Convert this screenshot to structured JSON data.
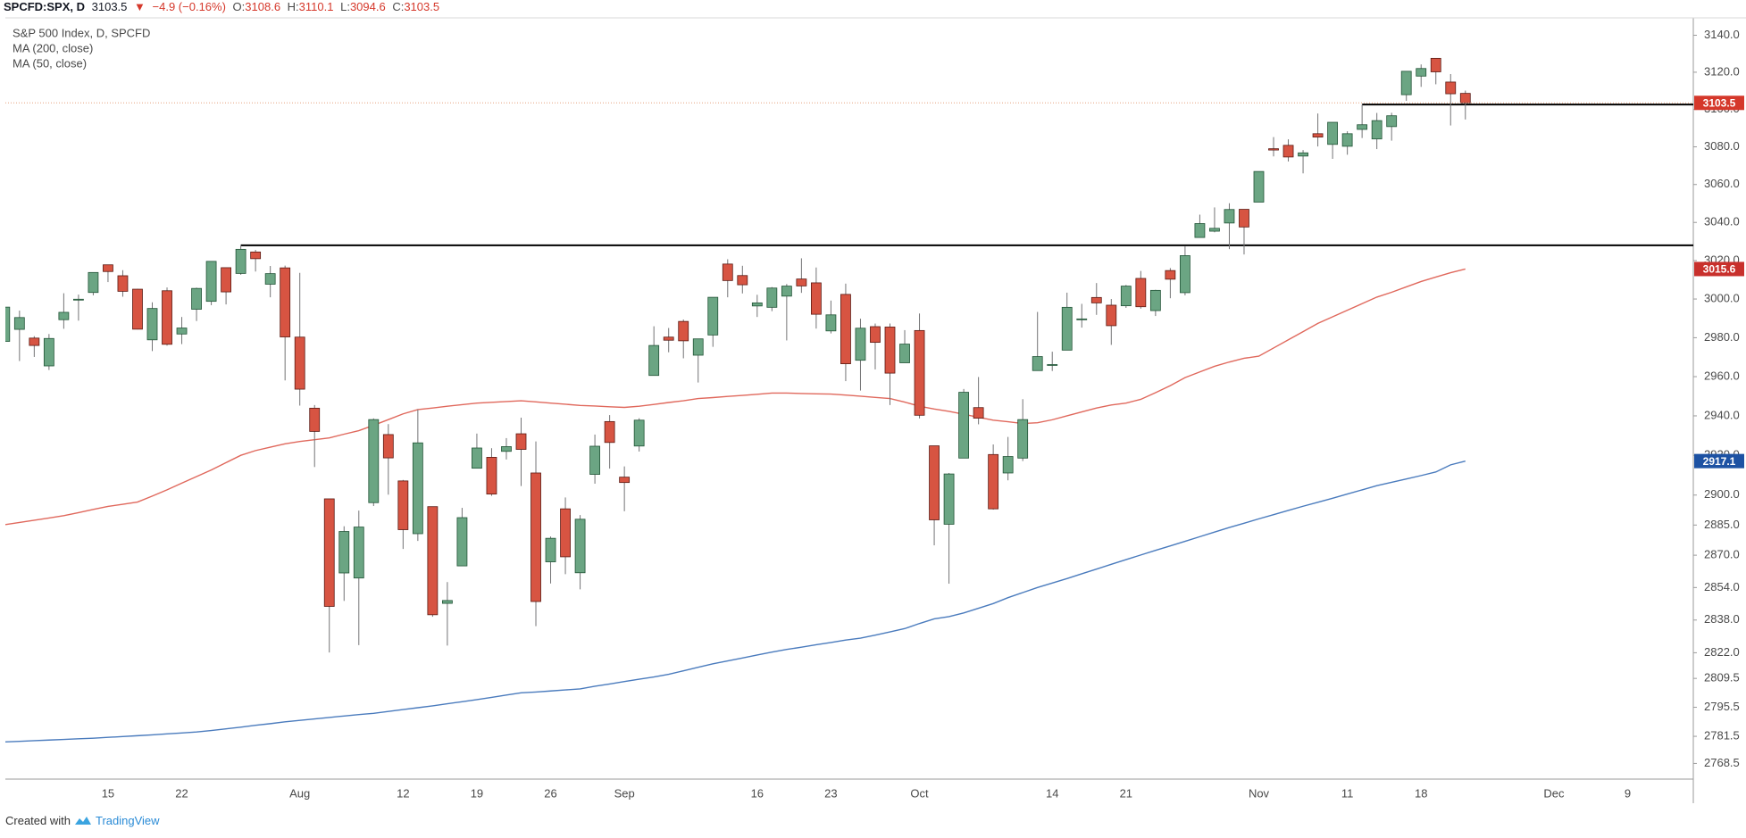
{
  "header": {
    "symbol": "SPCFD:SPX, D",
    "arrow": "▼",
    "change": "−4.9 (−0.16%)",
    "ohlc_labels": [
      "O:",
      "H:",
      "L:",
      "C:"
    ]
  },
  "footer": {
    "text": "Created with",
    "brand": "TradingView"
  },
  "chart_data": {
    "type": "candlestick",
    "name": "S&P 500 Index, D, SPCFD",
    "log_scale": true,
    "grid": false,
    "up_color": "#6ba583",
    "up_border": "#225437",
    "down_color": "#d75442",
    "down_border": "#5b1a13",
    "wick_color": "#737375",
    "last_price_color": "#e6a07c",
    "last_tag_color": "#d5382b",
    "ylim": [
      2761,
      3148.5
    ],
    "yticks": [
      {
        "value": 3140,
        "label": "3140.0"
      },
      {
        "value": 3120,
        "label": "3120.0"
      },
      {
        "value": 3100,
        "label": "3100.0"
      },
      {
        "value": 3080,
        "label": "3080.0"
      },
      {
        "value": 3060,
        "label": "3060.0"
      },
      {
        "value": 3040,
        "label": "3040.0"
      },
      {
        "value": 3020,
        "label": "3020.0"
      },
      {
        "value": 3000,
        "label": "3000.0"
      },
      {
        "value": 2980,
        "label": "2980.0"
      },
      {
        "value": 2960,
        "label": "2960.0"
      },
      {
        "value": 2940,
        "label": "2940.0"
      },
      {
        "value": 2920,
        "label": "2920.0"
      },
      {
        "value": 2900,
        "label": "2900.0"
      },
      {
        "value": 2885,
        "label": "2885.0"
      },
      {
        "value": 2870,
        "label": "2870.0"
      },
      {
        "value": 2854,
        "label": "2854.0"
      },
      {
        "value": 2838,
        "label": "2838.0"
      },
      {
        "value": 2822,
        "label": "2822.0"
      },
      2809.5,
      2795.5,
      2781.5,
      2768.5
    ],
    "categories": [
      null,
      null,
      null,
      null,
      null,
      null,
      null,
      "15",
      null,
      null,
      null,
      null,
      "22",
      null,
      null,
      null,
      null,
      null,
      null,
      null,
      "Aug",
      null,
      null,
      null,
      null,
      null,
      null,
      "12",
      null,
      null,
      null,
      null,
      "19",
      null,
      null,
      null,
      null,
      "26",
      null,
      null,
      null,
      null,
      "Sep",
      null,
      null,
      null,
      null,
      null,
      null,
      null,
      null,
      "16",
      null,
      null,
      null,
      null,
      "23",
      null,
      null,
      null,
      null,
      null,
      "Oct",
      null,
      null,
      null,
      null,
      null,
      null,
      null,
      null,
      "14",
      null,
      null,
      null,
      null,
      "21",
      null,
      null,
      null,
      null,
      null,
      null,
      null,
      null,
      "Nov",
      null,
      null,
      null,
      null,
      null,
      "11",
      null,
      null,
      null,
      null,
      "18",
      null,
      null,
      null,
      null,
      null,
      null,
      null,
      null,
      "Dec",
      null,
      null,
      null,
      null,
      "9",
      null,
      null,
      null,
      null
    ],
    "open": [
      2978.1,
      2984.3,
      2979.8,
      2965.5,
      2989.3,
      2999.6,
      3003.4,
      3017.8,
      3012.1,
      3005.1,
      2978.9,
      3004.3,
      2981.9,
      2994.7,
      2998.8,
      3016.3,
      3013.3,
      3024.5,
      3007.7,
      3016.2,
      2980.3,
      2943.9,
      2898.1,
      2861.2,
      2858.7,
      2896.2,
      2930.5,
      2907.1,
      2880.7,
      2894.2,
      2846.2,
      2864.7,
      2913.5,
      2919.0,
      2922.0,
      2930.9,
      2911.1,
      2866.7,
      2893.1,
      2861.3,
      2910.4,
      2937.1,
      2909.0,
      2924.7,
      2960.6,
      2980.3,
      2988.4,
      2971.0,
      2981.4,
      3018.2,
      3012.2,
      2996.4,
      2995.7,
      3001.5,
      3010.4,
      3008.4,
      2983.5,
      3002.4,
      2968.4,
      2985.7,
      2985.5,
      2967.1,
      2983.7,
      2924.8,
      2885.4,
      2918.6,
      2944.2,
      2920.4,
      2911.1,
      2918.6,
      2963.1,
      2965.8,
      2973.6,
      2989.7,
      3000.8,
      2996.8,
      2996.5,
      3010.7,
      2994.0,
      3014.8,
      3003.3,
      3032.1,
      3035.4,
      3039.7,
      3046.9,
      3050.7,
      3079.0,
      3080.8,
      3075.1,
      3087.0,
      3081.3,
      3080.3,
      3089.3,
      3084.2,
      3090.8,
      3107.9,
      3117.9,
      3127.5,
      3114.7,
      3108.6,
      null,
      null,
      null,
      null,
      null,
      null,
      null,
      null,
      null,
      null,
      null,
      null,
      null,
      null,
      null
    ],
    "high": [
      2995.8,
      2994.0,
      2980.8,
      2981.9,
      3003.0,
      3002.3,
      3013.9,
      3017.8,
      3015.0,
      3005.3,
      2998.3,
      3006.0,
      2990.7,
      3005.9,
      3019.6,
      3016.3,
      3028.0,
      3025.6,
      3017.2,
      3017.4,
      3013.6,
      2945.5,
      2898.1,
      2884.4,
      2892.2,
      2938.7,
      2935.8,
      2907.6,
      2943.3,
      2894.2,
      2856.7,
      2893.6,
      2931.0,
      2923.6,
      2928.7,
      2939.1,
      2927.0,
      2879.3,
      2898.8,
      2890.0,
      2930.5,
      2940.4,
      2914.4,
      2938.8,
      2985.9,
      2985.0,
      2989.4,
      2979.4,
      3000.9,
      3020.7,
      3017.3,
      3002.2,
      3006.2,
      3007.8,
      3021.2,
      3016.4,
      2999.2,
      3008.0,
      2989.8,
      2987.3,
      2987.3,
      2983.9,
      2992.5,
      2924.8,
      2911.1,
      2953.7,
      2959.8,
      2925.5,
      2929.3,
      2948.5,
      2993.3,
      2972.8,
      3003.3,
      2997.5,
      3008.3,
      3000.0,
      3007.3,
      3014.6,
      3004.8,
      3016.1,
      3027.4,
      3044.1,
      3047.9,
      3050.1,
      3046.9,
      3067.0,
      3085.2,
      3084.0,
      3078.3,
      3097.8,
      3093.1,
      3088.3,
      3102.6,
      3098.1,
      3098.2,
      3120.5,
      3124.2,
      3127.6,
      3119.0,
      3110.1,
      null,
      null,
      null,
      null,
      null,
      null,
      null,
      null,
      null,
      null,
      null,
      null,
      null,
      null,
      null
    ],
    "low": [
      2978.0,
      2968.0,
      2970.1,
      2963.4,
      2984.6,
      2988.8,
      3001.9,
      3008.8,
      3001.2,
      2984.3,
      2973.1,
      2975.9,
      2976.7,
      2988.6,
      2996.8,
      2997.2,
      3012.6,
      3014.3,
      3000.9,
      2958.1,
      2945.2,
      2914.1,
      2822.1,
      2847.4,
      2825.7,
      2894.5,
      2900.2,
      2873.1,
      2877.1,
      2839.6,
      2825.5,
      2864.7,
      2913.5,
      2899.6,
      2917.9,
      2904.5,
      2835.0,
      2856.0,
      2860.6,
      2853.1,
      2905.7,
      2913.3,
      2891.9,
      2921.9,
      2960.6,
      2972.5,
      2969.4,
      2957.0,
      2975.3,
      3000.9,
      3002.9,
      2990.7,
      2993.7,
      2978.6,
      3003.2,
      2984.7,
      2982.2,
      2957.7,
      2952.9,
      2963.7,
      2945.5,
      2967.1,
      2938.7,
      2874.9,
      2855.9,
      2918.6,
      2935.7,
      2892.7,
      2907.4,
      2917.1,
      2963.1,
      2962.9,
      2973.6,
      2985.2,
      2991.8,
      2976.3,
      2995.4,
      2995.0,
      2991.2,
      3000.4,
      3001.9,
      3032.1,
      3034.8,
      3026.0,
      3023.2,
      3050.7,
      3074.9,
      3072.2,
      3065.9,
      3080.2,
      3073.6,
      3075.8,
      3084.7,
      3078.8,
      3083.3,
      3104.6,
      3112.1,
      3113.5,
      3091.4,
      3094.6,
      null,
      null,
      null,
      null,
      null,
      null,
      null,
      null,
      null,
      null,
      null,
      null,
      null,
      null,
      null
    ],
    "close": [
      2995.8,
      2990.4,
      2976.0,
      2979.6,
      2993.1,
      2999.9,
      3013.8,
      3014.3,
      3004.0,
      2984.4,
      2995.1,
      2976.6,
      2985.0,
      3005.5,
      3019.6,
      3003.7,
      3025.9,
      3021.0,
      3013.2,
      2980.4,
      2953.6,
      2932.1,
      2844.7,
      2881.8,
      2884.0,
      2938.1,
      2918.7,
      2882.7,
      2926.3,
      2840.6,
      2847.6,
      2888.7,
      2923.7,
      2900.5,
      2924.4,
      2923.0,
      2847.1,
      2878.4,
      2869.2,
      2887.9,
      2924.6,
      2926.5,
      2906.3,
      2937.8,
      2976.0,
      2978.7,
      2978.4,
      2979.4,
      3000.9,
      3009.6,
      3007.4,
      2998.0,
      3005.7,
      3006.7,
      3006.8,
      2992.1,
      2991.8,
      2966.6,
      2984.9,
      2977.6,
      2961.8,
      2976.7,
      2940.3,
      2887.6,
      2910.6,
      2952.0,
      2938.8,
      2893.1,
      2919.4,
      2938.1,
      2970.3,
      2966.2,
      2995.7,
      2989.7,
      2998.0,
      2986.2,
      3006.7,
      2996.0,
      3004.5,
      3010.3,
      3022.6,
      3039.4,
      3036.9,
      3046.8,
      3037.6,
      3066.9,
      3078.3,
      3074.6,
      3076.8,
      3085.2,
      3093.1,
      3087.0,
      3091.8,
      3094.0,
      3096.6,
      3120.5,
      3122.0,
      3120.2,
      3108.4,
      3103.5,
      null,
      null,
      null,
      null,
      null,
      null,
      null,
      null,
      null,
      null,
      null,
      null,
      null,
      null,
      null
    ],
    "overlays": [
      {
        "name": "MA (200, close)",
        "color": "#4a7bbd",
        "label_color": "#1d52a3",
        "values": [
          2778.8,
          2779.1,
          2779.4,
          2779.7,
          2780.0,
          2780.3,
          2780.6,
          2781.0,
          2781.4,
          2781.8,
          2782.2,
          2782.7,
          2783.1,
          2783.6,
          2784.3,
          2785.1,
          2785.9,
          2786.8,
          2787.6,
          2788.5,
          2789.2,
          2789.9,
          2790.6,
          2791.3,
          2792.0,
          2792.6,
          2793.5,
          2794.4,
          2795.3,
          2796.2,
          2797.2,
          2798.2,
          2799.2,
          2800.3,
          2801.4,
          2802.5,
          2802.9,
          2803.4,
          2803.9,
          2804.4,
          2805.7,
          2806.8,
          2808.0,
          2809.1,
          2810.2,
          2811.5,
          2813.2,
          2814.9,
          2816.6,
          2818.0,
          2819.4,
          2820.9,
          2822.3,
          2823.6,
          2824.7,
          2825.9,
          2827.0,
          2828.2,
          2829.1,
          2830.6,
          2832.2,
          2833.8,
          2836.3,
          2838.6,
          2839.7,
          2841.5,
          2843.8,
          2846.1,
          2849.0,
          2851.5,
          2854.0,
          2856.2,
          2858.4,
          2860.8,
          2863.1,
          2865.5,
          2867.8,
          2870.1,
          2872.4,
          2874.6,
          2876.9,
          2879.2,
          2881.5,
          2883.8,
          2885.9,
          2888.1,
          2890.2,
          2892.3,
          2894.4,
          2896.4,
          2898.4,
          2900.5,
          2902.6,
          2904.7,
          2906.4,
          2908.1,
          2909.8,
          2911.6,
          2915.2,
          2917.1,
          null,
          null,
          null,
          null,
          null,
          null,
          null,
          null,
          null,
          null,
          null,
          null,
          null,
          null,
          null
        ]
      },
      {
        "name": "MA (50, close)",
        "color": "#e0685c",
        "label_color": "#c8302c",
        "values": [
          2885.2,
          2886.3,
          2887.4,
          2888.5,
          2889.7,
          2891.2,
          2892.8,
          2894.3,
          2895.4,
          2896.5,
          2899.5,
          2902.6,
          2906.0,
          2909.3,
          2912.6,
          2916.3,
          2920.0,
          2922.4,
          2924.1,
          2925.8,
          2927.0,
          2927.9,
          2928.8,
          2930.7,
          2932.5,
          2935.2,
          2938.1,
          2941.0,
          2943.2,
          2944.0,
          2944.9,
          2945.7,
          2946.5,
          2946.9,
          2947.3,
          2947.7,
          2947.1,
          2946.5,
          2945.9,
          2945.3,
          2945.0,
          2944.6,
          2944.3,
          2944.9,
          2945.8,
          2946.8,
          2947.7,
          2948.8,
          2949.3,
          2949.9,
          2950.4,
          2951.0,
          2951.6,
          2951.6,
          2951.4,
          2951.2,
          2951.1,
          2950.6,
          2950.0,
          2949.4,
          2948.8,
          2947.0,
          2944.9,
          2943.5,
          2942.3,
          2940.8,
          2939.3,
          2937.8,
          2937.0,
          2936.1,
          2936.5,
          2938.0,
          2940.0,
          2942.0,
          2944.0,
          2945.5,
          2946.5,
          2948.4,
          2951.8,
          2955.4,
          2959.5,
          2962.4,
          2965.3,
          2967.5,
          2969.4,
          2970.5,
          2974.7,
          2978.9,
          2983.1,
          2987.4,
          2990.8,
          2994.2,
          2997.6,
          3001.0,
          3003.5,
          3006.3,
          3009.1,
          3011.4,
          3013.7,
          3015.6,
          null,
          null,
          null,
          null,
          null,
          null,
          null,
          null,
          null,
          null,
          null,
          null,
          null,
          null,
          null
        ]
      }
    ],
    "levels": [
      {
        "value": 3028.0,
        "from": 16,
        "color": "#000000"
      },
      {
        "value": 3102.6,
        "from": 92,
        "color": "#000000"
      }
    ]
  }
}
